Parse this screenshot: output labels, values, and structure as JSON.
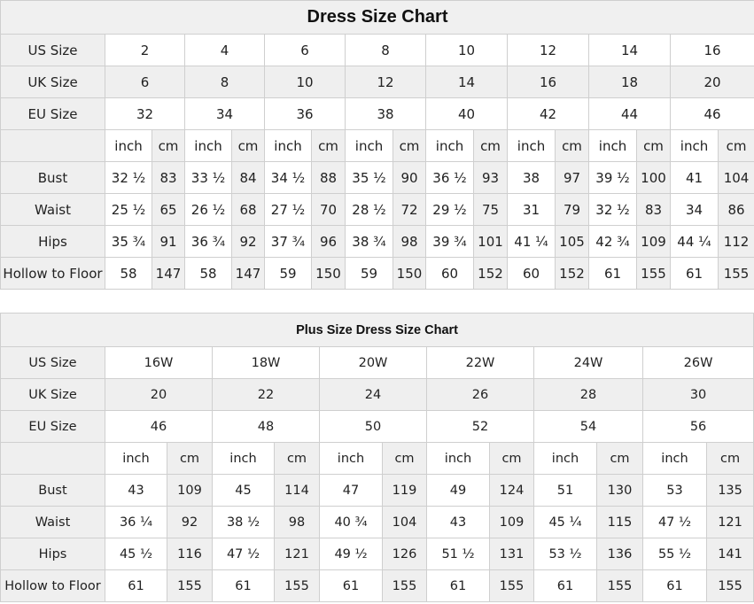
{
  "tables": [
    {
      "title": "Dress Size Chart",
      "row_labels": {
        "us": "US Size",
        "uk": "UK Size",
        "eu": "EU Size"
      },
      "us": [
        "2",
        "4",
        "6",
        "8",
        "10",
        "12",
        "14",
        "16"
      ],
      "uk": [
        "6",
        "8",
        "10",
        "12",
        "14",
        "16",
        "18",
        "20"
      ],
      "eu": [
        "32",
        "34",
        "36",
        "38",
        "40",
        "42",
        "44",
        "46"
      ],
      "unit_inch": "inch",
      "unit_cm": "cm",
      "measurements": [
        {
          "label": "Bust",
          "values": [
            "32 ½",
            "83",
            "33 ½",
            "84",
            "34 ½",
            "88",
            "35 ½",
            "90",
            "36 ½",
            "93",
            "38",
            "97",
            "39 ½",
            "100",
            "41",
            "104"
          ]
        },
        {
          "label": "Waist",
          "values": [
            "25 ½",
            "65",
            "26 ½",
            "68",
            "27 ½",
            "70",
            "28 ½",
            "72",
            "29 ½",
            "75",
            "31",
            "79",
            "32 ½",
            "83",
            "34",
            "86"
          ]
        },
        {
          "label": "Hips",
          "values": [
            "35 ¾",
            "91",
            "36 ¾",
            "92",
            "37 ¾",
            "96",
            "38 ¾",
            "98",
            "39 ¾",
            "101",
            "41 ¼",
            "105",
            "42 ¾",
            "109",
            "44 ¼",
            "112"
          ]
        },
        {
          "label": "Hollow to Floor",
          "values": [
            "58",
            "147",
            "58",
            "147",
            "59",
            "150",
            "59",
            "150",
            "60",
            "152",
            "60",
            "152",
            "61",
            "155",
            "61",
            "155"
          ]
        }
      ]
    },
    {
      "title": "Plus Size Dress Size Chart",
      "row_labels": {
        "us": "US Size",
        "uk": "UK Size",
        "eu": "EU Size"
      },
      "us": [
        "16W",
        "18W",
        "20W",
        "22W",
        "24W",
        "26W"
      ],
      "uk": [
        "20",
        "22",
        "24",
        "26",
        "28",
        "30"
      ],
      "eu": [
        "46",
        "48",
        "50",
        "52",
        "54",
        "56"
      ],
      "unit_inch": "inch",
      "unit_cm": "cm",
      "measurements": [
        {
          "label": "Bust",
          "values": [
            "43",
            "109",
            "45",
            "114",
            "47",
            "119",
            "49",
            "124",
            "51",
            "130",
            "53",
            "135"
          ]
        },
        {
          "label": "Waist",
          "values": [
            "36 ¼",
            "92",
            "38 ½",
            "98",
            "40 ¾",
            "104",
            "43",
            "109",
            "45 ¼",
            "115",
            "47 ½",
            "121"
          ]
        },
        {
          "label": "Hips",
          "values": [
            "45 ½",
            "116",
            "47 ½",
            "121",
            "49 ½",
            "126",
            "51 ½",
            "131",
            "53 ½",
            "136",
            "55 ½",
            "141"
          ]
        },
        {
          "label": "Hollow to Floor",
          "values": [
            "61",
            "155",
            "61",
            "155",
            "61",
            "155",
            "61",
            "155",
            "61",
            "155",
            "61",
            "155"
          ]
        }
      ]
    }
  ]
}
